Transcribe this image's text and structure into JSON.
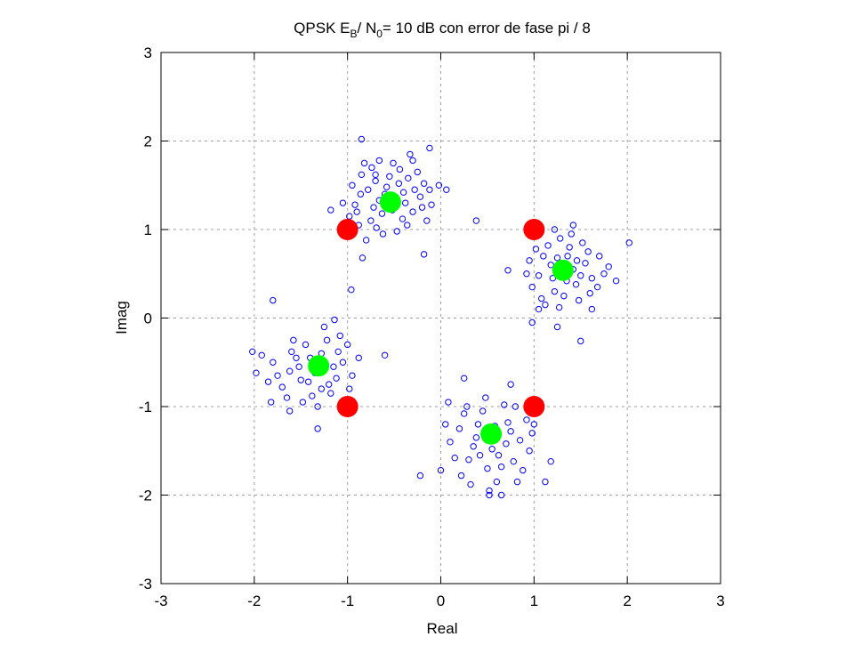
{
  "chart_data": {
    "type": "scatter",
    "title": {
      "pre": "QPSK E",
      "sub1": "B",
      "mid": "/ N",
      "sub2": "0",
      "post": "= 10 dB con error de fase pi / 8"
    },
    "xlabel": "Real",
    "ylabel": "Imag",
    "xlim": [
      -3,
      3
    ],
    "ylim": [
      -3,
      3
    ],
    "xticks": [
      -3,
      -2,
      -1,
      0,
      1,
      2,
      3
    ],
    "yticks": [
      -3,
      -2,
      -1,
      0,
      1,
      2,
      3
    ],
    "xtick_labels": [
      "-3",
      "-2",
      "-1",
      "0",
      "1",
      "2",
      "3"
    ],
    "ytick_labels": [
      "-3",
      "-2",
      "-1",
      "0",
      "1",
      "2",
      "3"
    ],
    "grid": true,
    "grid_style": "dashed",
    "series": [
      {
        "marker": "hollow-circle",
        "color": "#0000ff",
        "points": [
          [
            -0.56,
            1.31
          ],
          [
            -0.78,
            1.45
          ],
          [
            -0.35,
            1.58
          ],
          [
            -0.92,
            1.28
          ],
          [
            -0.41,
            1.12
          ],
          [
            -0.69,
            1.02
          ],
          [
            -0.22,
            1.37
          ],
          [
            -0.85,
            1.62
          ],
          [
            -0.51,
            1.75
          ],
          [
            -0.3,
            1.2
          ],
          [
            -0.63,
            1.18
          ],
          [
            -0.95,
            1.5
          ],
          [
            -0.18,
            1.52
          ],
          [
            -0.47,
            0.98
          ],
          [
            -0.74,
            1.7
          ],
          [
            -0.88,
            1.05
          ],
          [
            -0.1,
            1.28
          ],
          [
            -0.58,
            1.48
          ],
          [
            -0.4,
            1.42
          ],
          [
            -0.66,
            1.33
          ],
          [
            -1.05,
            1.3
          ],
          [
            -0.33,
            1.85
          ],
          [
            -0.8,
            0.88
          ],
          [
            -0.25,
            1.65
          ],
          [
            -0.52,
            1.22
          ],
          [
            -0.7,
            1.55
          ],
          [
            -0.44,
            1.68
          ],
          [
            -0.98,
            1.15
          ],
          [
            -0.15,
            1.1
          ],
          [
            -0.62,
            0.95
          ],
          [
            -0.86,
            1.4
          ],
          [
            -0.38,
            1.3
          ],
          [
            -0.55,
            1.6
          ],
          [
            -0.72,
            1.25
          ],
          [
            -0.28,
            1.45
          ],
          [
            -0.48,
            1.35
          ],
          [
            -0.82,
            1.75
          ],
          [
            -0.36,
            1.05
          ],
          [
            -0.66,
            1.78
          ],
          [
            -0.2,
            1.25
          ],
          [
            -0.6,
            1.4
          ],
          [
            -0.9,
            1.2
          ],
          [
            -0.45,
            1.52
          ],
          [
            -0.75,
            1.1
          ],
          [
            -0.12,
            1.45
          ],
          [
            -0.84,
            0.68
          ],
          [
            -0.18,
            0.72
          ],
          [
            -0.85,
            2.02
          ],
          [
            -0.12,
            1.92
          ],
          [
            0.38,
            1.1
          ],
          [
            -0.02,
            1.5
          ],
          [
            0.06,
            1.45
          ],
          [
            -1.18,
            1.22
          ],
          [
            -0.7,
            1.62
          ],
          [
            -0.3,
            1.78
          ],
          [
            1.3,
            0.54
          ],
          [
            1.1,
            0.7
          ],
          [
            1.45,
            0.38
          ],
          [
            1.55,
            0.62
          ],
          [
            1.22,
            0.3
          ],
          [
            1.05,
            0.48
          ],
          [
            1.38,
            0.8
          ],
          [
            1.62,
            0.45
          ],
          [
            1.18,
            0.6
          ],
          [
            1.48,
            0.2
          ],
          [
            1.28,
            0.9
          ],
          [
            0.98,
            0.35
          ],
          [
            1.7,
            0.7
          ],
          [
            1.35,
            0.42
          ],
          [
            1.12,
            0.15
          ],
          [
            1.52,
            0.85
          ],
          [
            1.25,
            0.68
          ],
          [
            0.95,
            0.65
          ],
          [
            1.42,
            0.55
          ],
          [
            1.6,
            0.28
          ],
          [
            1.15,
            0.82
          ],
          [
            1.32,
            0.25
          ],
          [
            1.75,
            0.5
          ],
          [
            1.02,
            0.78
          ],
          [
            1.4,
            0.95
          ],
          [
            1.2,
            0.45
          ],
          [
            1.58,
            0.75
          ],
          [
            1.08,
            0.22
          ],
          [
            1.46,
            0.65
          ],
          [
            1.27,
            0.12
          ],
          [
            1.68,
            0.35
          ],
          [
            0.92,
            0.5
          ],
          [
            1.36,
            0.7
          ],
          [
            1.5,
            0.48
          ],
          [
            1.22,
            1.0
          ],
          [
            1.62,
            0.1
          ],
          [
            1.05,
            0.1
          ],
          [
            1.42,
            1.05
          ],
          [
            0.72,
            0.54
          ],
          [
            2.02,
            0.85
          ],
          [
            1.5,
            -0.26
          ],
          [
            1.25,
            -0.1
          ],
          [
            1.8,
            0.58
          ],
          [
            1.88,
            0.42
          ],
          [
            0.98,
            -0.05
          ],
          [
            -1.3,
            -0.54
          ],
          [
            -1.5,
            -0.7
          ],
          [
            -1.1,
            -0.38
          ],
          [
            -1.45,
            -0.3
          ],
          [
            -1.62,
            -0.6
          ],
          [
            -1.2,
            -0.75
          ],
          [
            -1.05,
            -0.5
          ],
          [
            -1.38,
            -0.88
          ],
          [
            -1.55,
            -0.45
          ],
          [
            -1.22,
            -0.25
          ],
          [
            -1.7,
            -0.78
          ],
          [
            -1.35,
            -0.62
          ],
          [
            -0.95,
            -0.65
          ],
          [
            -1.48,
            -0.95
          ],
          [
            -1.15,
            -0.55
          ],
          [
            -1.8,
            -0.5
          ],
          [
            -1.28,
            -0.4
          ],
          [
            -1.58,
            -0.25
          ],
          [
            -1.0,
            -0.3
          ],
          [
            -1.42,
            -0.72
          ],
          [
            -1.65,
            -0.9
          ],
          [
            -1.18,
            -0.85
          ],
          [
            -1.25,
            -0.1
          ],
          [
            -0.98,
            -0.8
          ],
          [
            -1.52,
            -0.55
          ],
          [
            -1.08,
            -0.2
          ],
          [
            -1.75,
            -0.65
          ],
          [
            -1.32,
            -1.0
          ],
          [
            -1.4,
            -0.45
          ],
          [
            -1.12,
            -0.68
          ],
          [
            -0.88,
            -0.45
          ],
          [
            -1.6,
            -0.38
          ],
          [
            -1.28,
            -0.8
          ],
          [
            -1.85,
            -0.72
          ],
          [
            -1.02,
            -0.95
          ],
          [
            -1.92,
            -0.42
          ],
          [
            -1.14,
            -0.02
          ],
          [
            -1.82,
            -0.95
          ],
          [
            -0.6,
            -0.42
          ],
          [
            -1.62,
            -1.05
          ],
          [
            -1.8,
            0.2
          ],
          [
            -1.98,
            -0.62
          ],
          [
            -2.02,
            -0.38
          ],
          [
            -0.96,
            0.32
          ],
          [
            -1.32,
            -1.25
          ],
          [
            0.54,
            -1.31
          ],
          [
            0.35,
            -1.45
          ],
          [
            0.72,
            -1.18
          ],
          [
            0.2,
            -1.25
          ],
          [
            0.62,
            -1.55
          ],
          [
            0.45,
            -1.05
          ],
          [
            0.85,
            -1.38
          ],
          [
            0.3,
            -1.6
          ],
          [
            0.68,
            -0.98
          ],
          [
            0.1,
            -1.4
          ],
          [
            0.78,
            -1.62
          ],
          [
            0.5,
            -1.7
          ],
          [
            0.4,
            -1.2
          ],
          [
            0.92,
            -1.15
          ],
          [
            0.25,
            -1.08
          ],
          [
            0.6,
            -1.85
          ],
          [
            0.15,
            -1.58
          ],
          [
            0.8,
            -1.0
          ],
          [
            0.55,
            -1.48
          ],
          [
            0.38,
            -1.35
          ],
          [
            0.95,
            -1.5
          ],
          [
            0.48,
            -0.9
          ],
          [
            0.7,
            -1.42
          ],
          [
            0.22,
            -1.78
          ],
          [
            0.88,
            -1.72
          ],
          [
            0.58,
            -1.22
          ],
          [
            0.32,
            -1.88
          ],
          [
            0.75,
            -1.28
          ],
          [
            0.05,
            -1.2
          ],
          [
            0.65,
            -1.68
          ],
          [
            0.42,
            -1.55
          ],
          [
            0.98,
            -1.3
          ],
          [
            0.28,
            -1.0
          ],
          [
            0.52,
            -1.95
          ],
          [
            0.82,
            -1.85
          ],
          [
            -0.22,
            -1.78
          ],
          [
            0.0,
            -1.72
          ],
          [
            0.25,
            -0.68
          ],
          [
            0.08,
            -0.95
          ],
          [
            1.0,
            -1.2
          ],
          [
            0.65,
            -2.0
          ],
          [
            0.52,
            -2.0
          ],
          [
            1.12,
            -1.85
          ],
          [
            1.18,
            -1.62
          ],
          [
            0.75,
            -0.75
          ]
        ]
      },
      {
        "marker": "filled-circle",
        "color": "#ff0000",
        "points": [
          [
            -1,
            1
          ],
          [
            1,
            1
          ],
          [
            -1,
            -1
          ],
          [
            1,
            -1
          ]
        ]
      },
      {
        "marker": "filled-circle",
        "color": "#00ff00",
        "points": [
          [
            -0.54,
            1.31
          ],
          [
            1.31,
            0.54
          ],
          [
            -1.31,
            -0.54
          ],
          [
            0.54,
            -1.31
          ]
        ]
      }
    ]
  }
}
